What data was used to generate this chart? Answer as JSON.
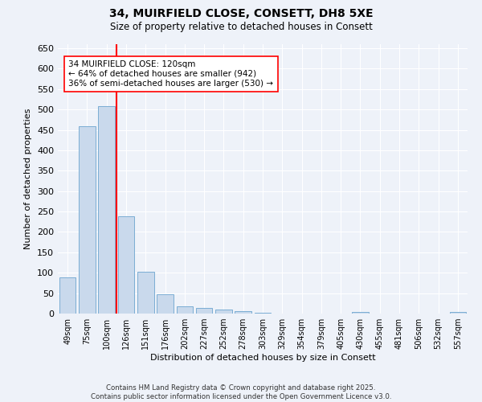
{
  "title1": "34, MUIRFIELD CLOSE, CONSETT, DH8 5XE",
  "title2": "Size of property relative to detached houses in Consett",
  "xlabel": "Distribution of detached houses by size in Consett",
  "ylabel": "Number of detached properties",
  "categories": [
    "49sqm",
    "75sqm",
    "100sqm",
    "126sqm",
    "151sqm",
    "176sqm",
    "202sqm",
    "227sqm",
    "252sqm",
    "278sqm",
    "303sqm",
    "329sqm",
    "354sqm",
    "379sqm",
    "405sqm",
    "430sqm",
    "455sqm",
    "481sqm",
    "506sqm",
    "532sqm",
    "557sqm"
  ],
  "values": [
    88,
    460,
    508,
    238,
    103,
    47,
    17,
    13,
    9,
    5,
    1,
    0,
    0,
    0,
    0,
    4,
    0,
    0,
    0,
    0,
    3
  ],
  "bar_color": "#c9d9ec",
  "bar_edge_color": "#7aadd4",
  "red_line_index": 3,
  "annotation_text": "34 MUIRFIELD CLOSE: 120sqm\n← 64% of detached houses are smaller (942)\n36% of semi-detached houses are larger (530) →",
  "ylim": [
    0,
    660
  ],
  "yticks": [
    0,
    50,
    100,
    150,
    200,
    250,
    300,
    350,
    400,
    450,
    500,
    550,
    600,
    650
  ],
  "bg_color": "#eef2f9",
  "grid_color": "#ffffff",
  "footer": "Contains HM Land Registry data © Crown copyright and database right 2025.\nContains public sector information licensed under the Open Government Licence v3.0."
}
